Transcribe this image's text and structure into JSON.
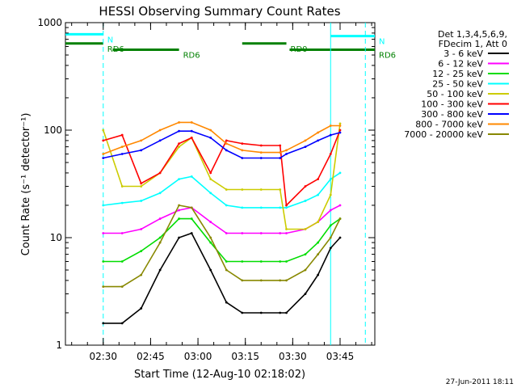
{
  "chart_data": {
    "type": "line",
    "title": "HESSI Observing Summary Count Rates",
    "xlabel": "Start Time (12-Aug-10 02:18:02)",
    "ylabel": "Count Rate (s⁻¹ detector⁻¹)",
    "yscale": "log",
    "ylim": [
      1,
      1000
    ],
    "xlim": [
      "02:18:02",
      "03:56:00"
    ],
    "x_ticks": [
      "02:30",
      "02:45",
      "03:00",
      "03:15",
      "03:30",
      "03:45"
    ],
    "y_ticks": [
      "1",
      "10",
      "100",
      "1000"
    ],
    "grid": false,
    "legend_position": "right",
    "legend_header": [
      "Det 1,3,4,5,6,9,",
      "FDecim 1, Att 0"
    ],
    "footer_date": "27-Jun-2011 18:11",
    "x": [
      "02:30",
      "02:36",
      "02:42",
      "02:48",
      "02:54",
      "02:58",
      "03:04",
      "03:09",
      "03:14",
      "03:20",
      "03:26",
      "03:28",
      "03:34",
      "03:38",
      "03:42",
      "03:45"
    ],
    "series": [
      {
        "name": "3 - 6 keV",
        "color": "#000000",
        "values": [
          1.6,
          1.6,
          2.2,
          5.0,
          10,
          11,
          5,
          2.5,
          2.0,
          2.0,
          2.0,
          2.0,
          3.0,
          4.5,
          8.0,
          10
        ]
      },
      {
        "name": "6 - 12 keV",
        "color": "#ff00ff",
        "values": [
          11,
          11,
          12,
          15,
          18,
          19,
          14,
          11,
          11,
          11,
          11,
          11,
          12,
          14,
          18,
          20
        ]
      },
      {
        "name": "12 - 25 keV",
        "color": "#00dd00",
        "values": [
          6,
          6,
          7.5,
          10,
          15,
          15,
          9,
          6,
          6,
          6,
          6,
          6,
          7,
          9,
          13,
          15
        ]
      },
      {
        "name": "25 - 50 keV",
        "color": "#00ffff",
        "values": [
          20,
          21,
          22,
          26,
          35,
          37,
          26,
          20,
          19,
          19,
          19,
          19,
          22,
          25,
          35,
          40
        ]
      },
      {
        "name": "50 - 100 keV",
        "color": "#cccc00",
        "values": [
          100,
          30,
          30,
          40,
          70,
          85,
          35,
          28,
          28,
          28,
          28,
          12,
          12,
          14,
          25,
          115
        ]
      },
      {
        "name": "100 - 300 keV",
        "color": "#ff0000",
        "values": [
          80,
          90,
          32,
          40,
          75,
          85,
          40,
          80,
          75,
          72,
          72,
          20,
          30,
          35,
          60,
          100
        ]
      },
      {
        "name": "300 - 800 keV",
        "color": "#0000ff",
        "values": [
          55,
          60,
          65,
          80,
          98,
          98,
          85,
          65,
          55,
          55,
          55,
          60,
          70,
          80,
          90,
          95
        ]
      },
      {
        "name": "800 - 7000 keV",
        "color": "#ff8800",
        "values": [
          60,
          70,
          80,
          100,
          118,
          118,
          100,
          75,
          65,
          62,
          62,
          65,
          80,
          95,
          110,
          110
        ]
      },
      {
        "name": "7000 - 20000 keV",
        "color": "#888800",
        "values": [
          3.5,
          3.5,
          4.5,
          9,
          20,
          19,
          10,
          5,
          4,
          4,
          4,
          4,
          5,
          7,
          10,
          15
        ]
      }
    ],
    "annotations": [
      {
        "label": "N",
        "color": "#00ffff",
        "x_range": [
          "02:18:02",
          "02:30"
        ],
        "y": 780
      },
      {
        "label": "N",
        "color": "#00ffff",
        "x_range": [
          "03:42",
          "03:56"
        ],
        "y": 750
      },
      {
        "label": "RD0",
        "color": "#008000",
        "x_range": [
          "03:14",
          "03:28"
        ],
        "y": 640
      },
      {
        "label": "RD6",
        "color": "#008000",
        "x_range": [
          "02:18:02",
          "02:30"
        ],
        "y": 640
      },
      {
        "label": "RD6",
        "color": "#008000",
        "x_range": [
          "02:33",
          "02:54"
        ],
        "y": 560
      },
      {
        "label": "RD6",
        "color": "#008000",
        "x_range": [
          "03:29",
          "03:56"
        ],
        "y": 560
      }
    ],
    "vertical_markers": [
      {
        "x": "02:30",
        "style": "dashed",
        "color": "#00ffff"
      },
      {
        "x": "03:42",
        "style": "solid",
        "color": "#00ffff"
      },
      {
        "x": "03:53",
        "style": "dashed",
        "color": "#00ffff"
      }
    ]
  }
}
